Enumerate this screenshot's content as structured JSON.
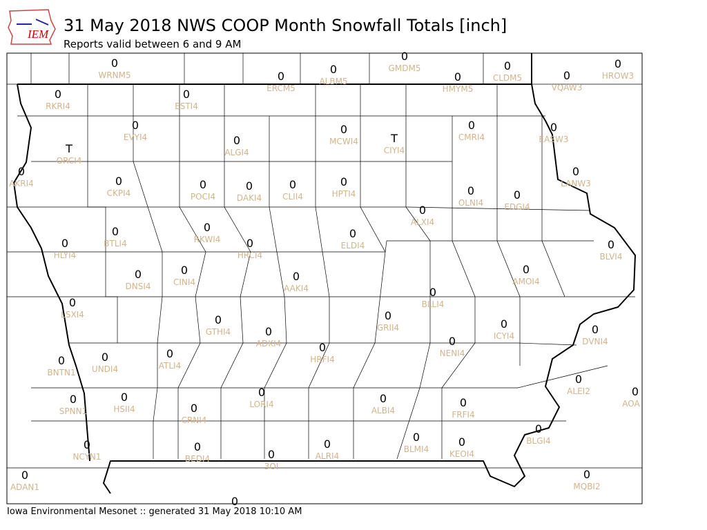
{
  "logo_text": "IEM",
  "title": "31 May 2018 NWS COOP Month Snowfall Totals [inch]",
  "subtitle": "Reports valid between 6 and 9 AM",
  "footer": "Iowa Environmental Mesonet :: generated 31 May 2018 10:10 AM",
  "stations": [
    {
      "id": "WRNM5",
      "value": 0
    },
    {
      "id": "ERCM5",
      "value": 0
    },
    {
      "id": "ALBM5",
      "value": 0
    },
    {
      "id": "GMDM5",
      "value": 0
    },
    {
      "id": "HMYM5",
      "value": 0
    },
    {
      "id": "CLDM5",
      "value": 0
    },
    {
      "id": "VQAW3",
      "value": 0
    },
    {
      "id": "HROW3",
      "value": 0
    },
    {
      "id": "RKRI4",
      "value": 0
    },
    {
      "id": "ESTI4",
      "value": 0
    },
    {
      "id": "EVYI4",
      "value": 0
    },
    {
      "id": "ALGI4",
      "value": 0
    },
    {
      "id": "MCWI4",
      "value": 0
    },
    {
      "id": "CIYI4",
      "value": "T"
    },
    {
      "id": "CMRI4",
      "value": 0
    },
    {
      "id": "EASW3",
      "value": 0
    },
    {
      "id": "ORCI4",
      "value": "T"
    },
    {
      "id": "AKRI4",
      "value": 0
    },
    {
      "id": "CKPI4",
      "value": 0
    },
    {
      "id": "POCI4",
      "value": 0
    },
    {
      "id": "DAKI4",
      "value": 0
    },
    {
      "id": "CLII4",
      "value": 0
    },
    {
      "id": "HPTI4",
      "value": 0
    },
    {
      "id": "LANW3",
      "value": 0
    },
    {
      "id": "OLNI4",
      "value": 0
    },
    {
      "id": "EDGI4",
      "value": 0
    },
    {
      "id": "ALXI4",
      "value": 0
    },
    {
      "id": "BTLI4",
      "value": 0
    },
    {
      "id": "RKWI4",
      "value": 0
    },
    {
      "id": "ELDI4",
      "value": 0
    },
    {
      "id": "HRCI4",
      "value": 0
    },
    {
      "id": "HLYI4",
      "value": 0
    },
    {
      "id": "BLVI4",
      "value": 0
    },
    {
      "id": "DNSI4",
      "value": 0
    },
    {
      "id": "CINI4",
      "value": 0
    },
    {
      "id": "AAKI4",
      "value": 0
    },
    {
      "id": "AMOI4",
      "value": 0
    },
    {
      "id": "BLLI4",
      "value": 0
    },
    {
      "id": "LSXI4",
      "value": 0
    },
    {
      "id": "GTHI4",
      "value": 0
    },
    {
      "id": "ADKI4",
      "value": 0
    },
    {
      "id": "GRII4",
      "value": 0
    },
    {
      "id": "ICYI4",
      "value": 0
    },
    {
      "id": "DVNI4",
      "value": 0
    },
    {
      "id": "HRFI4",
      "value": 0
    },
    {
      "id": "NENI4",
      "value": 0
    },
    {
      "id": "ATLI4",
      "value": 0
    },
    {
      "id": "UNDI4",
      "value": 0
    },
    {
      "id": "BNTN1",
      "value": 0
    },
    {
      "id": "ALEI2",
      "value": 0
    },
    {
      "id": "AOA",
      "value": 0
    },
    {
      "id": "SPNN1",
      "value": 0
    },
    {
      "id": "HSII4",
      "value": 0
    },
    {
      "id": "LORI4",
      "value": 0
    },
    {
      "id": "ALBI4",
      "value": 0
    },
    {
      "id": "FRFI4",
      "value": 0
    },
    {
      "id": "CRNI4",
      "value": 0
    },
    {
      "id": "BLGI4",
      "value": 0
    },
    {
      "id": "NCYN1",
      "value": 0
    },
    {
      "id": "BEDI4",
      "value": 0
    },
    {
      "id": "ALRI4",
      "value": 0
    },
    {
      "id": "BLMI4",
      "value": 0
    },
    {
      "id": "KEOI4",
      "value": 0
    },
    {
      "id": "3OI",
      "value": 0
    },
    {
      "id": "ADAN1",
      "value": 0
    },
    {
      "id": "MQBI2",
      "value": 0
    },
    {
      "id": null,
      "value": 0
    }
  ]
}
